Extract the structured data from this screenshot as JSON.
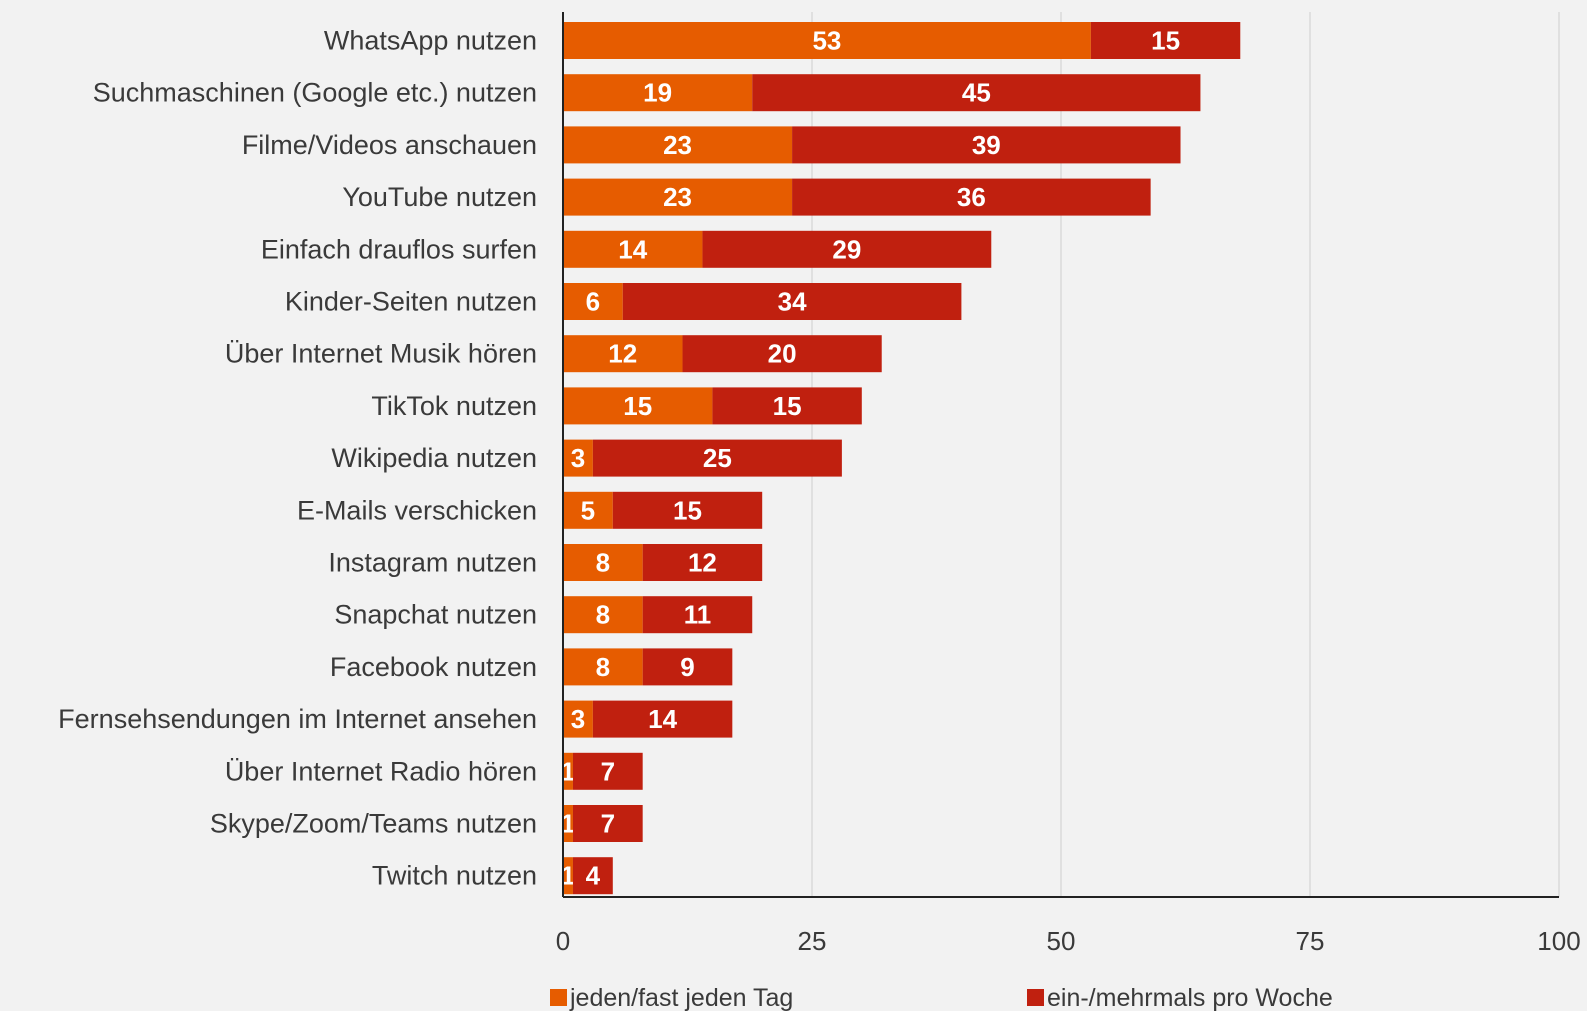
{
  "chart_data": {
    "type": "bar",
    "orientation": "horizontal",
    "stacked": true,
    "categories": [
      "WhatsApp nutzen",
      "Suchmaschinen (Google etc.) nutzen",
      "Filme/Videos anschauen",
      "YouTube nutzen",
      "Einfach drauflos surfen",
      "Kinder-Seiten nutzen",
      "Über Internet Musik hören",
      "TikTok nutzen",
      "Wikipedia nutzen",
      "E-Mails verschicken",
      "Instagram nutzen",
      "Snapchat nutzen",
      "Facebook nutzen",
      "Fernsehsendungen im Internet ansehen",
      "Über Internet Radio hören",
      "Skype/Zoom/Teams nutzen",
      "Twitch nutzen"
    ],
    "series": [
      {
        "name": "jeden/fast jeden Tag",
        "color": "#e65c00",
        "values": [
          53,
          19,
          23,
          23,
          14,
          6,
          12,
          15,
          3,
          5,
          8,
          8,
          8,
          3,
          1,
          1,
          1
        ]
      },
      {
        "name": "ein-/mehrmals pro Woche",
        "color": "#c0200f",
        "values": [
          15,
          45,
          39,
          36,
          29,
          34,
          20,
          15,
          25,
          15,
          12,
          11,
          9,
          14,
          7,
          7,
          4
        ]
      }
    ],
    "xlim": [
      0,
      100
    ],
    "xticks": [
      0,
      25,
      50,
      75,
      100
    ],
    "grid": true,
    "legend": "bottom",
    "title": "",
    "xlabel": "",
    "ylabel": ""
  }
}
